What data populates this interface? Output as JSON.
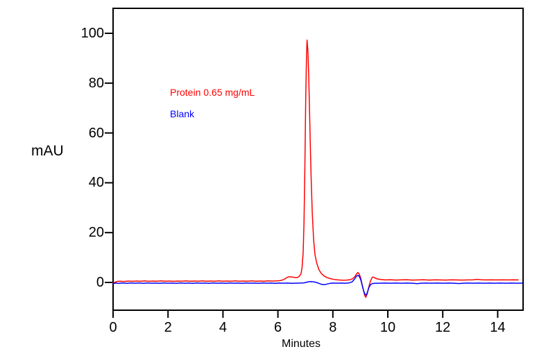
{
  "chart_data": {
    "type": "line",
    "title": "",
    "xlabel": "Minutes",
    "ylabel": "mAU",
    "xlim": [
      0,
      15
    ],
    "ylim": [
      -11,
      110
    ],
    "xticks": [
      0,
      2,
      4,
      6,
      8,
      10,
      12,
      14
    ],
    "yticks": [
      0,
      20,
      40,
      60,
      80,
      100
    ],
    "grid": false,
    "legend_position": "inside-top-left",
    "axis_color": "#000000",
    "background_color": "#ffffff",
    "annotations": [
      {
        "text": "Protein 0.65 mg/mL",
        "color": "#ff0000"
      },
      {
        "text": "Blank",
        "color": "#0000ff"
      }
    ],
    "series": [
      {
        "name": "Protein 0.65 mg/mL",
        "color": "#ff0000",
        "points": [
          [
            0.0,
            -0.2
          ],
          [
            0.08,
            0.15
          ],
          [
            0.16,
            0.45
          ],
          [
            0.25,
            0.5
          ],
          [
            0.4,
            0.4
          ],
          [
            0.55,
            0.55
          ],
          [
            0.7,
            0.45
          ],
          [
            0.85,
            0.55
          ],
          [
            1.0,
            0.5
          ],
          [
            1.15,
            0.6
          ],
          [
            1.3,
            0.45
          ],
          [
            1.45,
            0.55
          ],
          [
            1.6,
            0.5
          ],
          [
            1.75,
            0.6
          ],
          [
            1.9,
            0.5
          ],
          [
            2.05,
            0.55
          ],
          [
            2.2,
            0.45
          ],
          [
            2.35,
            0.55
          ],
          [
            2.5,
            0.5
          ],
          [
            2.65,
            0.6
          ],
          [
            2.8,
            0.5
          ],
          [
            2.95,
            0.55
          ],
          [
            3.1,
            0.5
          ],
          [
            3.25,
            0.6
          ],
          [
            3.4,
            0.5
          ],
          [
            3.55,
            0.55
          ],
          [
            3.7,
            0.5
          ],
          [
            3.85,
            0.6
          ],
          [
            4.0,
            0.5
          ],
          [
            4.15,
            0.55
          ],
          [
            4.3,
            0.5
          ],
          [
            4.45,
            0.6
          ],
          [
            4.6,
            0.5
          ],
          [
            4.75,
            0.55
          ],
          [
            4.9,
            0.5
          ],
          [
            5.05,
            0.6
          ],
          [
            5.2,
            0.5
          ],
          [
            5.35,
            0.55
          ],
          [
            5.5,
            0.5
          ],
          [
            5.65,
            0.6
          ],
          [
            5.8,
            0.55
          ],
          [
            5.95,
            0.6
          ],
          [
            6.05,
            0.7
          ],
          [
            6.15,
            0.9
          ],
          [
            6.25,
            1.4
          ],
          [
            6.33,
            2.0
          ],
          [
            6.42,
            2.3
          ],
          [
            6.5,
            2.2
          ],
          [
            6.58,
            2.05
          ],
          [
            6.66,
            1.95
          ],
          [
            6.73,
            2.1
          ],
          [
            6.79,
            2.6
          ],
          [
            6.84,
            3.6
          ],
          [
            6.88,
            6.0
          ],
          [
            6.92,
            12.0
          ],
          [
            6.95,
            24.0
          ],
          [
            6.98,
            45.0
          ],
          [
            7.01,
            72.0
          ],
          [
            7.04,
            91.0
          ],
          [
            7.06,
            97.3
          ],
          [
            7.09,
            93.0
          ],
          [
            7.12,
            83.0
          ],
          [
            7.15,
            70.0
          ],
          [
            7.18,
            55.0
          ],
          [
            7.21,
            42.0
          ],
          [
            7.25,
            28.0
          ],
          [
            7.3,
            17.0
          ],
          [
            7.35,
            11.0
          ],
          [
            7.42,
            7.5
          ],
          [
            7.5,
            5.0
          ],
          [
            7.58,
            3.6
          ],
          [
            7.68,
            2.6
          ],
          [
            7.8,
            1.9
          ],
          [
            7.92,
            1.5
          ],
          [
            8.05,
            1.2
          ],
          [
            8.2,
            1.0
          ],
          [
            8.35,
            0.9
          ],
          [
            8.5,
            0.95
          ],
          [
            8.62,
            1.1
          ],
          [
            8.72,
            1.5
          ],
          [
            8.8,
            2.3
          ],
          [
            8.86,
            3.4
          ],
          [
            8.91,
            4.0
          ],
          [
            8.96,
            3.4
          ],
          [
            9.01,
            1.9
          ],
          [
            9.06,
            -0.6
          ],
          [
            9.11,
            -3.0
          ],
          [
            9.16,
            -5.2
          ],
          [
            9.2,
            -6.0
          ],
          [
            9.25,
            -4.6
          ],
          [
            9.3,
            -2.2
          ],
          [
            9.36,
            0.3
          ],
          [
            9.42,
            1.8
          ],
          [
            9.46,
            2.2
          ],
          [
            9.53,
            1.8
          ],
          [
            9.62,
            1.4
          ],
          [
            9.75,
            1.2
          ],
          [
            9.9,
            1.0
          ],
          [
            10.1,
            1.1
          ],
          [
            10.3,
            0.95
          ],
          [
            10.5,
            1.05
          ],
          [
            10.7,
            1.1
          ],
          [
            10.9,
            0.95
          ],
          [
            11.1,
            1.0
          ],
          [
            11.3,
            1.1
          ],
          [
            11.5,
            0.95
          ],
          [
            11.7,
            1.05
          ],
          [
            11.9,
            1.0
          ],
          [
            12.1,
            0.95
          ],
          [
            12.3,
            1.05
          ],
          [
            12.5,
            1.0
          ],
          [
            12.7,
            0.95
          ],
          [
            12.9,
            1.0
          ],
          [
            13.1,
            1.05
          ],
          [
            13.25,
            1.25
          ],
          [
            13.4,
            1.1
          ],
          [
            13.55,
            1.0
          ],
          [
            13.75,
            1.05
          ],
          [
            13.95,
            1.0
          ],
          [
            14.15,
            1.05
          ],
          [
            14.35,
            1.0
          ],
          [
            14.55,
            1.05
          ],
          [
            14.75,
            1.0
          ]
        ]
      },
      {
        "name": "Blank",
        "color": "#0000ff",
        "points": [
          [
            0.0,
            -0.5
          ],
          [
            0.1,
            -0.25
          ],
          [
            0.2,
            -0.4
          ],
          [
            0.35,
            -0.2
          ],
          [
            0.5,
            -0.35
          ],
          [
            0.65,
            -0.2
          ],
          [
            0.8,
            -0.3
          ],
          [
            0.95,
            -0.2
          ],
          [
            1.1,
            -0.35
          ],
          [
            1.25,
            -0.2
          ],
          [
            1.4,
            -0.3
          ],
          [
            1.55,
            -0.25
          ],
          [
            1.7,
            -0.35
          ],
          [
            1.85,
            -0.2
          ],
          [
            2.0,
            -0.3
          ],
          [
            2.15,
            -0.25
          ],
          [
            2.3,
            -0.35
          ],
          [
            2.45,
            -0.2
          ],
          [
            2.6,
            -0.3
          ],
          [
            2.75,
            -0.25
          ],
          [
            2.9,
            -0.35
          ],
          [
            3.05,
            -0.2
          ],
          [
            3.2,
            -0.3
          ],
          [
            3.35,
            -0.25
          ],
          [
            3.5,
            -0.35
          ],
          [
            3.65,
            -0.2
          ],
          [
            3.8,
            -0.3
          ],
          [
            3.95,
            -0.25
          ],
          [
            4.1,
            -0.35
          ],
          [
            4.25,
            -0.2
          ],
          [
            4.4,
            -0.3
          ],
          [
            4.55,
            -0.25
          ],
          [
            4.7,
            -0.35
          ],
          [
            4.85,
            -0.2
          ],
          [
            5.0,
            -0.3
          ],
          [
            5.15,
            -0.25
          ],
          [
            5.3,
            -0.35
          ],
          [
            5.45,
            -0.2
          ],
          [
            5.6,
            -0.3
          ],
          [
            5.75,
            -0.25
          ],
          [
            5.9,
            -0.35
          ],
          [
            6.05,
            -0.25
          ],
          [
            6.2,
            -0.3
          ],
          [
            6.35,
            -0.25
          ],
          [
            6.5,
            -0.35
          ],
          [
            6.65,
            -0.3
          ],
          [
            6.8,
            -0.25
          ],
          [
            6.92,
            -0.2
          ],
          [
            7.02,
            0.0
          ],
          [
            7.1,
            0.25
          ],
          [
            7.2,
            0.35
          ],
          [
            7.3,
            0.25
          ],
          [
            7.4,
            0.0
          ],
          [
            7.5,
            -0.4
          ],
          [
            7.6,
            -0.8
          ],
          [
            7.7,
            -0.9
          ],
          [
            7.8,
            -0.6
          ],
          [
            7.9,
            -0.35
          ],
          [
            8.0,
            -0.25
          ],
          [
            8.15,
            -0.3
          ],
          [
            8.3,
            -0.25
          ],
          [
            8.45,
            -0.3
          ],
          [
            8.58,
            -0.2
          ],
          [
            8.7,
            0.2
          ],
          [
            8.79,
            1.4
          ],
          [
            8.86,
            2.5
          ],
          [
            8.92,
            2.9
          ],
          [
            8.97,
            2.3
          ],
          [
            9.02,
            0.9
          ],
          [
            9.07,
            -1.3
          ],
          [
            9.12,
            -3.4
          ],
          [
            9.17,
            -4.8
          ],
          [
            9.21,
            -5.1
          ],
          [
            9.26,
            -3.9
          ],
          [
            9.31,
            -2.1
          ],
          [
            9.37,
            -0.9
          ],
          [
            9.44,
            -0.45
          ],
          [
            9.55,
            -0.3
          ],
          [
            9.7,
            -0.3
          ],
          [
            9.9,
            -0.25
          ],
          [
            10.1,
            -0.3
          ],
          [
            10.3,
            -0.25
          ],
          [
            10.5,
            -0.3
          ],
          [
            10.7,
            -0.25
          ],
          [
            10.9,
            -0.3
          ],
          [
            11.08,
            -0.5
          ],
          [
            11.2,
            -0.3
          ],
          [
            11.4,
            -0.25
          ],
          [
            11.6,
            -0.3
          ],
          [
            11.8,
            -0.25
          ],
          [
            12.0,
            -0.3
          ],
          [
            12.2,
            -0.25
          ],
          [
            12.4,
            -0.3
          ],
          [
            12.6,
            -0.45
          ],
          [
            12.72,
            -0.3
          ],
          [
            12.9,
            -0.25
          ],
          [
            13.1,
            -0.3
          ],
          [
            13.3,
            -0.25
          ],
          [
            13.5,
            -0.3
          ],
          [
            13.7,
            -0.25
          ],
          [
            13.9,
            -0.3
          ],
          [
            14.1,
            -0.25
          ],
          [
            14.3,
            -0.3
          ],
          [
            14.5,
            -0.25
          ],
          [
            14.7,
            -0.3
          ],
          [
            14.9,
            -0.28
          ]
        ]
      }
    ]
  }
}
